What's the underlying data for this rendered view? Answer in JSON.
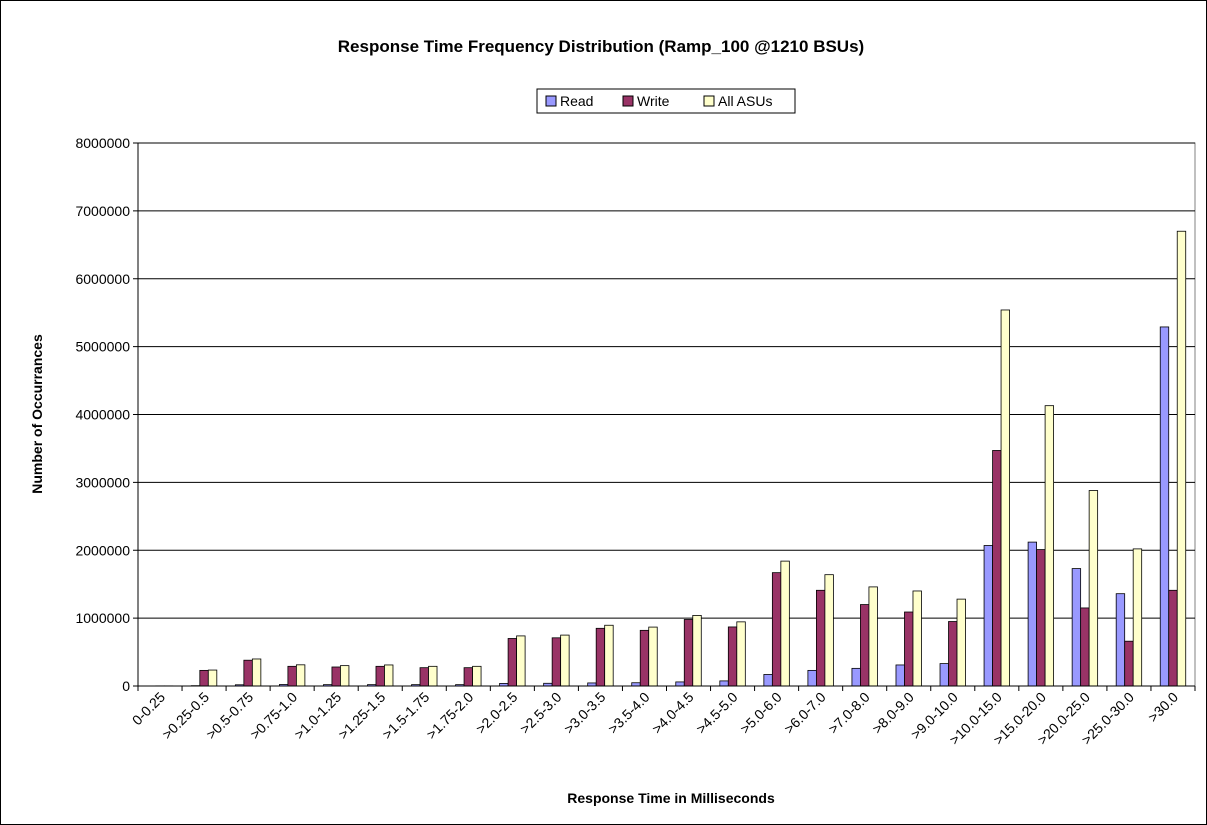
{
  "chart_data": {
    "type": "bar",
    "title": "Response Time Frequency Distribution (Ramp_100 @1210 BSUs)",
    "xlabel": "Response Time in Milliseconds",
    "ylabel": "Number of Occurrances",
    "ylim": [
      0,
      8000000
    ],
    "yticks": [
      "0",
      "1000000",
      "2000000",
      "3000000",
      "4000000",
      "5000000",
      "6000000",
      "7000000",
      "8000000"
    ],
    "grid": true,
    "legend_position": "top-center",
    "categories": [
      "0-0.25",
      ">0.25-0.5",
      ">0.5-0.75",
      ">0.75-1.0",
      ">1.0-1.25",
      ">1.25-1.5",
      ">1.5-1.75",
      ">1.75-2.0",
      ">2.0-2.5",
      ">2.5-3.0",
      ">3.0-3.5",
      ">3.5-4.0",
      ">4.0-4.5",
      ">4.5-5.0",
      ">5.0-6.0",
      ">6.0-7.0",
      ">7.0-8.0",
      ">8.0-9.0",
      ">9.0-10.0",
      ">10.0-15.0",
      ">15.0-20.0",
      ">20.0-25.0",
      ">25.0-30.0",
      ">30.0"
    ],
    "series": [
      {
        "name": "Read",
        "color": "#9999FF",
        "values": [
          0,
          5000,
          18000,
          22000,
          20000,
          20000,
          20000,
          20000,
          38000,
          40000,
          45000,
          48000,
          60000,
          75000,
          170000,
          230000,
          260000,
          310000,
          330000,
          2070000,
          2120000,
          1730000,
          1360000,
          5290000
        ]
      },
      {
        "name": "Write",
        "color": "#993366",
        "values": [
          2000,
          230000,
          380000,
          290000,
          280000,
          290000,
          270000,
          270000,
          700000,
          710000,
          850000,
          820000,
          980000,
          870000,
          1670000,
          1410000,
          1200000,
          1090000,
          950000,
          3470000,
          2010000,
          1150000,
          660000,
          1410000
        ]
      },
      {
        "name": "All ASUs",
        "color": "#FFFFCC",
        "values": [
          2000,
          235000,
          398000,
          312000,
          300000,
          310000,
          290000,
          290000,
          738000,
          750000,
          895000,
          868000,
          1040000,
          945000,
          1840000,
          1640000,
          1460000,
          1400000,
          1280000,
          5540000,
          4130000,
          2880000,
          2020000,
          6700000
        ]
      }
    ]
  }
}
